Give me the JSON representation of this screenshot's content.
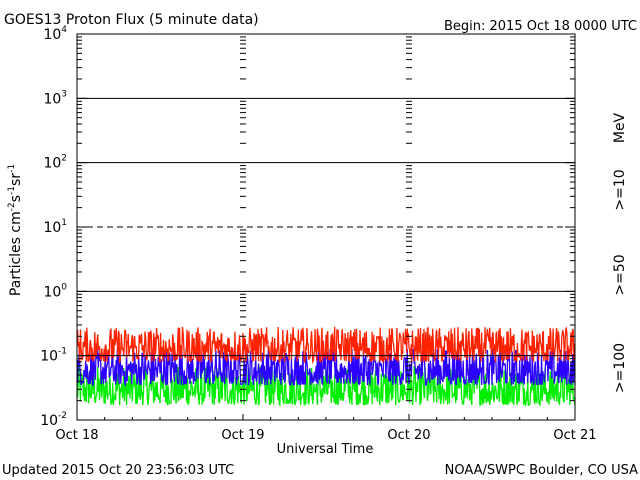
{
  "header": {
    "title": "GOES13 Proton Flux (5 minute data)",
    "begin": "Begin: 2015 Oct 18 0000 UTC"
  },
  "footer": {
    "updated": "Updated 2015 Oct 20 23:56:03 UTC",
    "source": "NOAA/SWPC Boulder, CO USA"
  },
  "chart_data": {
    "type": "line",
    "title": "GOES13 Proton Flux (5 minute data)",
    "xlabel": "Universal Time",
    "ylabel": "Particles cm-2s-1sr-1",
    "y_scale": "log",
    "ylim": [
      0.01,
      10000
    ],
    "xlim": [
      "2015-10-18",
      "2015-10-21"
    ],
    "x_tick_labels": [
      "Oct 18",
      "Oct 19",
      "Oct 20",
      "Oct 21"
    ],
    "y_ticks": [
      {
        "base": "10",
        "exp": "-2"
      },
      {
        "base": "10",
        "exp": "-1"
      },
      {
        "base": "10",
        "exp": "0"
      },
      {
        "base": "10",
        "exp": "1"
      },
      {
        "base": "10",
        "exp": "2"
      },
      {
        "base": "10",
        "exp": "3"
      },
      {
        "base": "10",
        "exp": "4"
      }
    ],
    "reference_lines": [
      {
        "y": 1000,
        "style": "solid"
      },
      {
        "y": 100,
        "style": "solid"
      },
      {
        "y": 10,
        "style": "dashed"
      },
      {
        "y": 1,
        "style": "solid"
      },
      {
        "y": 0.1,
        "style": "solid"
      }
    ],
    "unit_label": "MeV",
    "grid": true,
    "legend_position": "right",
    "series": [
      {
        "name": ">=10",
        "color": "#ff2200",
        "typical_min": 0.08,
        "typical_max": 0.28
      },
      {
        "name": ">=50",
        "color": "#2b00ff",
        "typical_min": 0.035,
        "typical_max": 0.13
      },
      {
        "name": ">=100",
        "color": "#00ee00",
        "typical_min": 0.017,
        "typical_max": 0.07
      }
    ]
  }
}
